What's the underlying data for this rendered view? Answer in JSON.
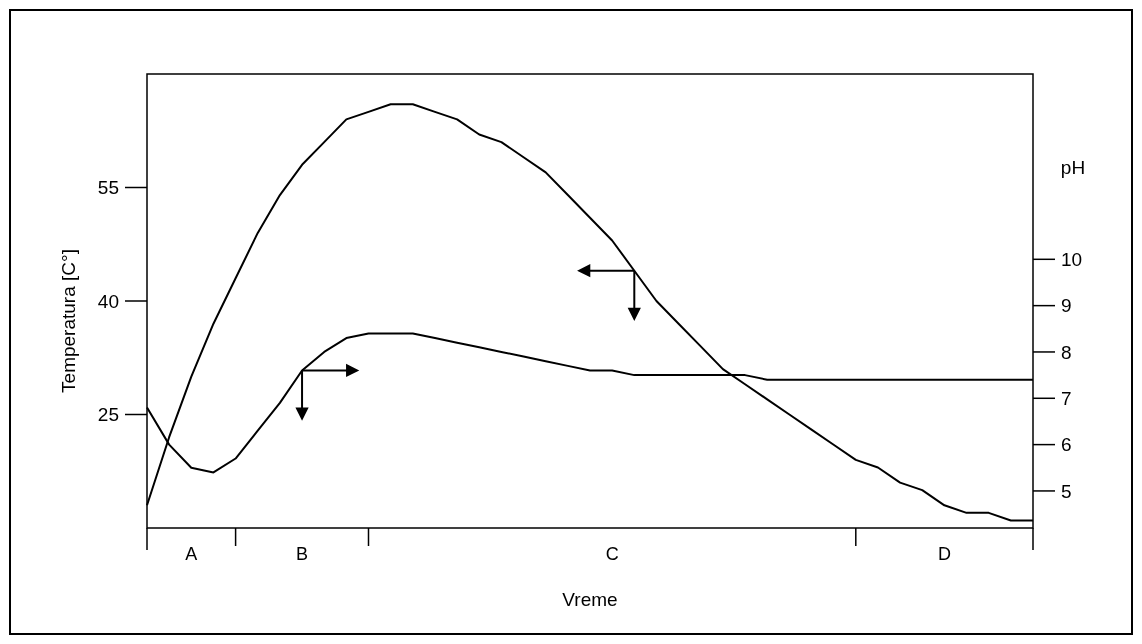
{
  "chart_data": {
    "type": "line",
    "xlabel": "Vreme",
    "ylabel": "Temperatura [C°]",
    "y2label": "pH",
    "categories": [
      null,
      null,
      "A",
      null,
      null,
      null,
      null,
      "B",
      null,
      null,
      null,
      null,
      null,
      null,
      null,
      null,
      null,
      null,
      null,
      null,
      null,
      "C",
      null,
      null,
      null,
      null,
      null,
      null,
      null,
      null,
      null,
      null,
      null,
      null,
      null,
      null,
      "D",
      null,
      null,
      null,
      null
    ],
    "ylim": [
      10,
      70
    ],
    "yticks": [
      25,
      40,
      55
    ],
    "y2lim": [
      4.2,
      14
    ],
    "y2ticks": [
      5,
      6,
      7,
      8,
      9,
      10
    ],
    "series": [
      {
        "color": "#000000",
        "values": [
          13,
          22,
          30,
          37,
          43,
          49,
          54,
          58,
          61,
          64,
          65,
          66,
          66,
          65,
          64,
          62,
          61,
          59,
          57,
          54,
          51,
          48,
          44,
          40,
          37,
          34,
          31,
          29,
          27,
          25,
          23,
          21,
          19,
          18,
          16,
          15,
          13,
          12,
          12,
          11,
          11
        ]
      },
      {
        "color": "#000000",
        "axis": "y2",
        "values": [
          6.8,
          6,
          5.5,
          5.4,
          5.7,
          6.3,
          6.9,
          7.6,
          8,
          8.3,
          8.4,
          8.4,
          8.4,
          8.3,
          8.2,
          8.1,
          8,
          7.9,
          7.8,
          7.7,
          7.6,
          7.6,
          7.5,
          7.5,
          7.5,
          7.5,
          7.5,
          7.5,
          7.4,
          7.4,
          7.4,
          7.4,
          7.4,
          7.4,
          7.4,
          7.4,
          7.4,
          7.4,
          7.4,
          7.4,
          7.4
        ]
      }
    ]
  }
}
